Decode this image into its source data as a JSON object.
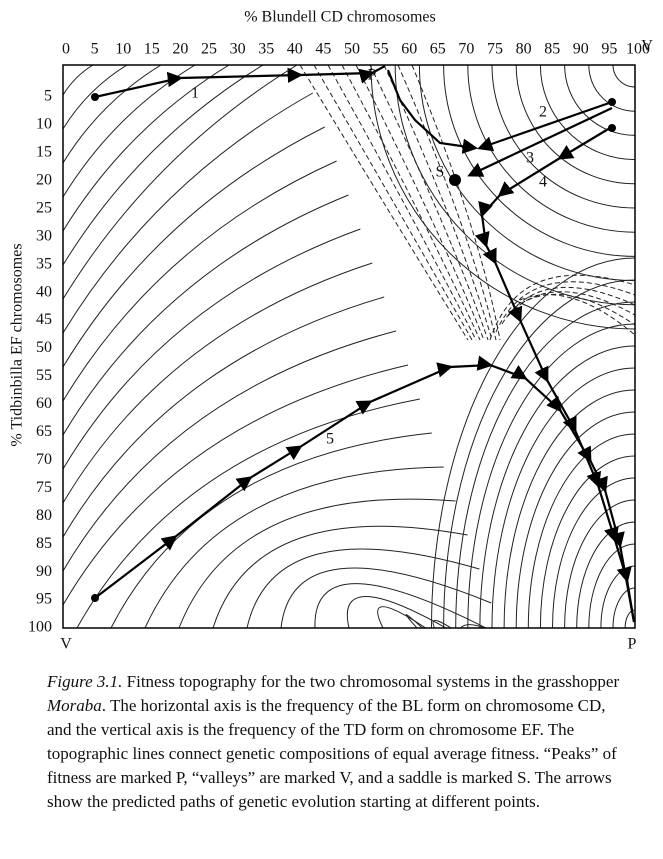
{
  "figure": {
    "x_axis": {
      "title": "% Blundell CD chromosomes",
      "ticks": [
        0,
        5,
        10,
        15,
        20,
        25,
        30,
        35,
        40,
        45,
        50,
        55,
        60,
        65,
        70,
        75,
        80,
        85,
        90,
        95,
        100
      ]
    },
    "y_axis": {
      "title": "% Tidbinbilla EF chromosomes",
      "ticks": [
        5,
        10,
        15,
        20,
        25,
        30,
        35,
        40,
        45,
        50,
        55,
        60,
        65,
        70,
        75,
        80,
        85,
        90,
        95,
        100
      ]
    },
    "corner_labels": {
      "top_right": "V",
      "bottom_left": "V",
      "bottom_right": "P"
    },
    "peak_label": "P",
    "saddle_label": "S",
    "path_labels": [
      "1",
      "2",
      "3",
      "4",
      "5"
    ]
  },
  "caption": {
    "label": "Figure 3.1.",
    "text_before": " Fitness topography for the two chromosomal systems in the grasshopper ",
    "species": "Moraba",
    "text_after": ". The horizontal axis is the frequency of the BL form on chromosome CD, and the vertical axis is the frequency of the TD form on chromosome EF. The topographic lines connect genetic compositions of equal average fitness. “Peaks” of fitness are marked P, “valleys” are marked V, and a saddle is marked S. The arrows show the predicted paths of genetic evolution starting at different points."
  }
}
